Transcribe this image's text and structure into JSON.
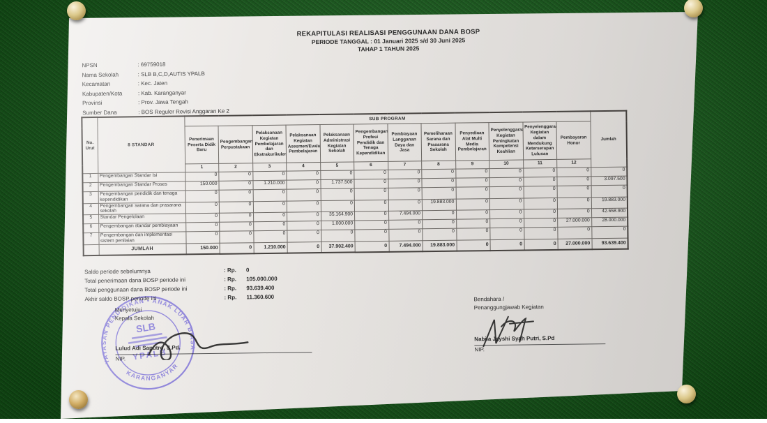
{
  "document": {
    "title_line1": "REKAPITULASI REALISASI PENGGUNAAN DANA BOSP",
    "title_line2": "PERIODE TANGGAL : 01 Januari 2025 s/d 30 Juni 2025",
    "title_line3": "TAHAP 1 TAHUN 2025",
    "info": [
      {
        "label": "NPSN",
        "value": ": 69759018"
      },
      {
        "label": "Nama Sekolah",
        "value": ": SLB B,C,D,AUTIS YPALB"
      },
      {
        "label": "Kecamatan",
        "value": ": Kec. Jaten"
      },
      {
        "label": "Kabupaten/Kota",
        "value": ": Kab. Karanganyar"
      },
      {
        "label": "Provinsi",
        "value": ": Prov. Jawa Tengah"
      },
      {
        "label": "Sumber Dana",
        "value": ": BOS Reguler Revisi Anggaran Ke 2"
      }
    ]
  },
  "table": {
    "corner": {
      "no": "No. Urut",
      "standar": "8 STANDAR",
      "jumlah": "Jumlah"
    },
    "group_header": "SUB PROGRAM",
    "columns": [
      {
        "num": "1",
        "label": "Penerimaan Peserta Didik Baru"
      },
      {
        "num": "2",
        "label": "Pengembangan Perpustakaan"
      },
      {
        "num": "3",
        "label": "Pelaksanaan Kegiatan Pembelajaran dan Ekstrakurikuler"
      },
      {
        "num": "4",
        "label": "Pelaksanaan Kegiatan Asesmen/Evaluasi Pembelajaran"
      },
      {
        "num": "5",
        "label": "Pelaksanaan Administrasi Kegiatan Sekolah"
      },
      {
        "num": "6",
        "label": "Pengembangan Profesi Pendidik dan Tenaga Kependidikan"
      },
      {
        "num": "7",
        "label": "Pembiayaan Langganan Daya dan Jasa"
      },
      {
        "num": "8",
        "label": "Pemeliharaan Sarana dan Prasarana Sekolah"
      },
      {
        "num": "9",
        "label": "Penyediaan Alat Multi Media Pembelajaran"
      },
      {
        "num": "10",
        "label": "Penyelenggaraan Kegiatan Peningkatan Kompetensi Keahlian"
      },
      {
        "num": "11",
        "label": "Penyelenggaraan Kegiatan dalam Mendukung Keterserapan Lulusan"
      },
      {
        "num": "12",
        "label": "Pembayaran Honor"
      }
    ],
    "rows": [
      {
        "no": "1",
        "name": "Pengembangan Standar Isi",
        "values": [
          "0",
          "0",
          "0",
          "0",
          "0",
          "0",
          "0",
          "0",
          "0",
          "0",
          "0",
          "0"
        ],
        "jumlah": "0"
      },
      {
        "no": "2",
        "name": "Pengembangan Standar Proses",
        "values": [
          "150.000",
          "0",
          "1.210.000",
          "0",
          "1.737.500",
          "0",
          "0",
          "0",
          "0",
          "0",
          "0",
          "0"
        ],
        "jumlah": "3.097.500"
      },
      {
        "no": "3",
        "name": "Pengembangan pendidik dan tenaga kependidikan",
        "values": [
          "0",
          "0",
          "0",
          "0",
          "0",
          "0",
          "0",
          "0",
          "0",
          "0",
          "0",
          "0"
        ],
        "jumlah": "0"
      },
      {
        "no": "4",
        "name": "Pengembangan sarana dan prasarana sekolah",
        "values": [
          "0",
          "0",
          "0",
          "0",
          "0",
          "0",
          "0",
          "19.883.000",
          "0",
          "0",
          "0",
          "0"
        ],
        "jumlah": "19.883.000"
      },
      {
        "no": "5",
        "name": "Standar Pengelolaan",
        "values": [
          "0",
          "0",
          "0",
          "0",
          "35.164.900",
          "0",
          "7.494.000",
          "0",
          "0",
          "0",
          "0",
          "0"
        ],
        "jumlah": "42.658.900"
      },
      {
        "no": "6",
        "name": "Pengembangan standar pembiayaan",
        "values": [
          "0",
          "0",
          "0",
          "0",
          "1.000.000",
          "0",
          "0",
          "0",
          "0",
          "0",
          "0",
          "27.000.000"
        ],
        "jumlah": "28.000.000"
      },
      {
        "no": "7",
        "name": "Pengembangan dan implementasi sistem penilaian",
        "values": [
          "0",
          "0",
          "0",
          "0",
          "0",
          "0",
          "0",
          "0",
          "0",
          "0",
          "0",
          "0"
        ],
        "jumlah": "0"
      }
    ],
    "total_row": {
      "label": "JUMLAH",
      "values": [
        "150.000",
        "0",
        "1.210.000",
        "0",
        "37.902.400",
        "0",
        "7.494.000",
        "19.883.000",
        "0",
        "0",
        "0",
        "27.000.000"
      ],
      "jumlah": "93.639.400"
    }
  },
  "summary": [
    {
      "label": "Saldo periode sebelumnya",
      "prefix": ": Rp.",
      "amount": "0"
    },
    {
      "label": "Total penerimaan dana BOSP periode ini",
      "prefix": ": Rp.",
      "amount": "105.000.000"
    },
    {
      "label": "Total penggunaan dana BOSP periode ini",
      "prefix": ": Rp.",
      "amount": "93.639.400"
    },
    {
      "label": "Akhir saldo BOSP periode ini",
      "prefix": ": Rp.",
      "amount": "11.360.600"
    }
  ],
  "signatures": {
    "left": {
      "role1": "Menyetujui",
      "role2": "Kepala Sekolah",
      "name": "Lulud Adi Saputro, S.Pd.",
      "nip": "NIP."
    },
    "right": {
      "role1": "Bendahara /",
      "role2": "Penanggungjawab Kegiatan",
      "name": "Nabila Jayshi Syah Putri, S.Pd",
      "nip": "NIP."
    }
  },
  "stamp": {
    "arc_top": "YAYASAN PENDIDIKAN • ANAK LUAR BIASA",
    "arc_bottom": "KARANGANYAR",
    "center_top": "SLB",
    "center_bottom": "YPALB"
  },
  "colors": {
    "board_green": "#156019",
    "paper": "#eae7e4",
    "ink": "#2d2d2d",
    "stamp_violet": "#6c5fd6",
    "pin_gold": "#d9c688"
  }
}
